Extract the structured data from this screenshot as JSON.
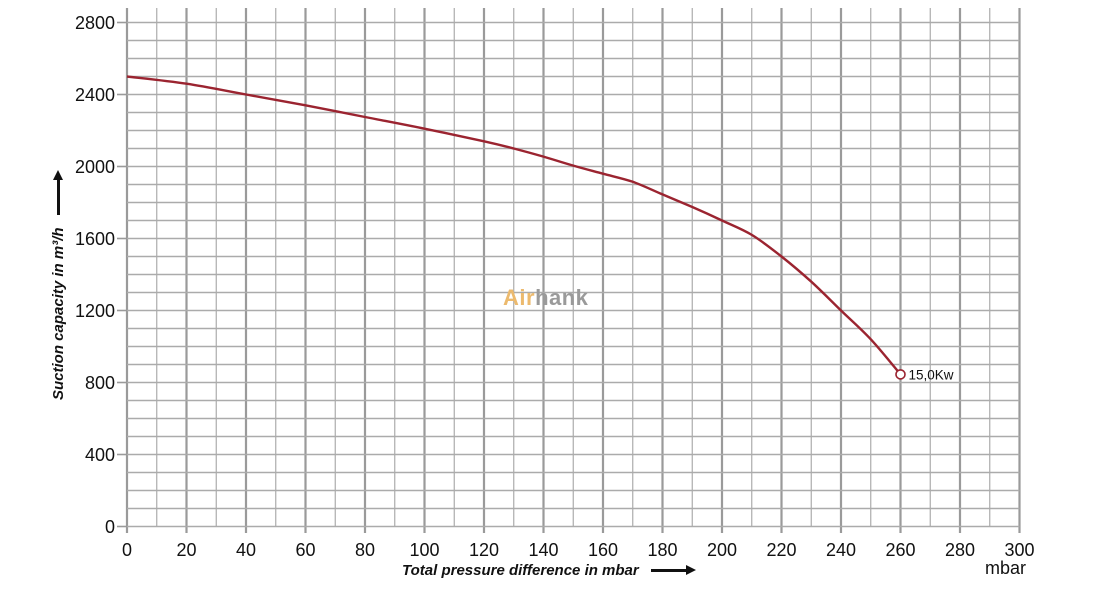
{
  "chart_data": {
    "type": "line",
    "title": "",
    "xlabel": "Total pressure difference in mbar",
    "ylabel": "Suction capacity in m³/h",
    "x_unit": "mbar",
    "xlim": [
      0,
      300
    ],
    "ylim": [
      0,
      2800
    ],
    "x_major_step": 20,
    "x_minor_step": 10,
    "y_grid_step": 100,
    "y_label_step": 400,
    "x_ticks": [
      0,
      20,
      40,
      60,
      80,
      100,
      120,
      140,
      160,
      180,
      200,
      220,
      240,
      260,
      280,
      300
    ],
    "y_ticks": [
      0,
      400,
      800,
      1200,
      1600,
      2000,
      2400,
      2800
    ],
    "grid": true,
    "legend_position": "none",
    "series": [
      {
        "name": "15,0Kw",
        "end_label": "15,0Kw",
        "end_marker": "open-circle",
        "points": [
          [
            0,
            2500
          ],
          [
            20,
            2460
          ],
          [
            40,
            2400
          ],
          [
            60,
            2340
          ],
          [
            80,
            2275
          ],
          [
            100,
            2210
          ],
          [
            120,
            2140
          ],
          [
            130,
            2100
          ],
          [
            140,
            2055
          ],
          [
            150,
            2005
          ],
          [
            160,
            1960
          ],
          [
            170,
            1915
          ],
          [
            180,
            1845
          ],
          [
            190,
            1775
          ],
          [
            200,
            1700
          ],
          [
            210,
            1620
          ],
          [
            220,
            1500
          ],
          [
            230,
            1360
          ],
          [
            240,
            1200
          ],
          [
            250,
            1040
          ],
          [
            260,
            845
          ]
        ]
      }
    ],
    "colors": {
      "curve": "#9b2430",
      "grid_minor": "#ababab",
      "grid_major": "#9a9a9a",
      "text": "#111111",
      "background": "#ffffff"
    }
  },
  "watermark": {
    "part1": "Air",
    "part2": "hank",
    "color1": "#ecba6e",
    "color2": "#9a9a9a"
  }
}
